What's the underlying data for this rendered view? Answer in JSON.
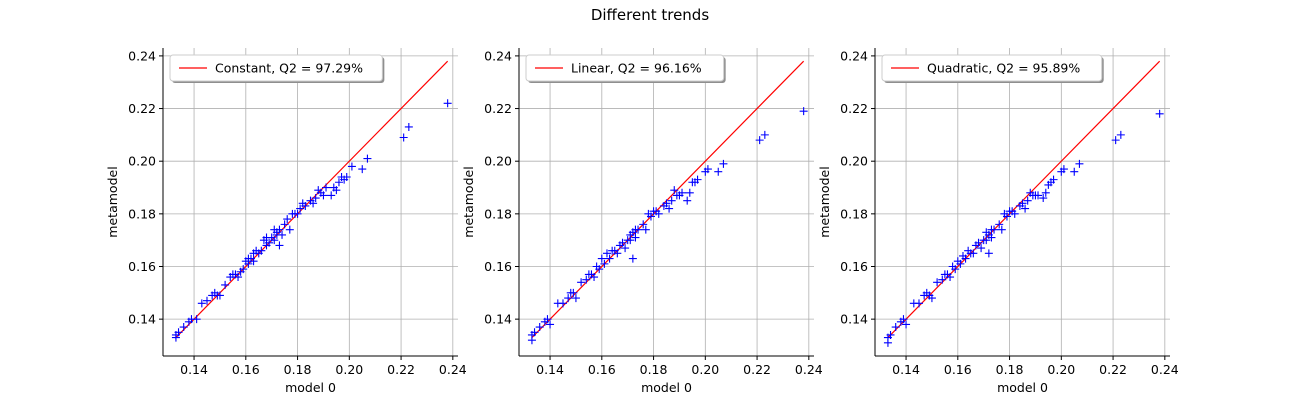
{
  "figure": {
    "suptitle": "Different trends",
    "colors": {
      "points": "#0000ff",
      "line": "#ff0000",
      "grid": "#b0b0b0"
    }
  },
  "chart_data": [
    {
      "type": "scatter",
      "legend": "Constant, Q2 = 97.29%",
      "legend_position": "top-left",
      "xlabel": "model 0",
      "ylabel": "metamodel",
      "xlim": [
        0.128,
        0.242
      ],
      "ylim": [
        0.126,
        0.243
      ],
      "xticks": [
        "0.14",
        "0.16",
        "0.18",
        "0.20",
        "0.22",
        "0.24"
      ],
      "yticks": [
        "0.14",
        "0.16",
        "0.18",
        "0.20",
        "0.22",
        "0.24"
      ],
      "grid": true,
      "line": {
        "x": [
          0.133,
          0.238
        ],
        "y": [
          0.133,
          0.238
        ]
      },
      "points": {
        "x": [
          0.133,
          0.133,
          0.134,
          0.136,
          0.138,
          0.139,
          0.141,
          0.143,
          0.145,
          0.147,
          0.148,
          0.149,
          0.15,
          0.152,
          0.154,
          0.155,
          0.156,
          0.157,
          0.158,
          0.159,
          0.16,
          0.161,
          0.161,
          0.162,
          0.163,
          0.163,
          0.164,
          0.165,
          0.166,
          0.167,
          0.168,
          0.168,
          0.169,
          0.17,
          0.171,
          0.171,
          0.172,
          0.172,
          0.173,
          0.173,
          0.174,
          0.175,
          0.176,
          0.177,
          0.178,
          0.179,
          0.18,
          0.181,
          0.182,
          0.183,
          0.185,
          0.186,
          0.187,
          0.188,
          0.189,
          0.19,
          0.191,
          0.193,
          0.194,
          0.195,
          0.196,
          0.197,
          0.198,
          0.199,
          0.201,
          0.205,
          0.207,
          0.221,
          0.223,
          0.238
        ],
        "y": [
          0.133,
          0.134,
          0.135,
          0.137,
          0.139,
          0.14,
          0.14,
          0.146,
          0.147,
          0.149,
          0.15,
          0.149,
          0.149,
          0.153,
          0.156,
          0.157,
          0.157,
          0.156,
          0.158,
          0.159,
          0.162,
          0.161,
          0.163,
          0.163,
          0.162,
          0.165,
          0.166,
          0.165,
          0.166,
          0.17,
          0.168,
          0.171,
          0.169,
          0.171,
          0.174,
          0.17,
          0.173,
          0.172,
          0.174,
          0.168,
          0.172,
          0.176,
          0.178,
          0.174,
          0.18,
          0.18,
          0.18,
          0.182,
          0.184,
          0.183,
          0.185,
          0.184,
          0.186,
          0.189,
          0.188,
          0.187,
          0.19,
          0.187,
          0.19,
          0.189,
          0.192,
          0.194,
          0.193,
          0.194,
          0.198,
          0.197,
          0.201,
          0.209,
          0.213,
          0.222
        ]
      }
    },
    {
      "type": "scatter",
      "legend": "Linear, Q2 = 96.16%",
      "legend_position": "top-left",
      "xlabel": "model 0",
      "ylabel": "metamodel",
      "xlim": [
        0.128,
        0.242
      ],
      "ylim": [
        0.126,
        0.243
      ],
      "xticks": [
        "0.14",
        "0.16",
        "0.18",
        "0.20",
        "0.22",
        "0.24"
      ],
      "yticks": [
        "0.14",
        "0.16",
        "0.18",
        "0.20",
        "0.22",
        "0.24"
      ],
      "grid": true,
      "line": {
        "x": [
          0.133,
          0.238
        ],
        "y": [
          0.133,
          0.238
        ]
      },
      "points": {
        "x": [
          0.133,
          0.133,
          0.134,
          0.136,
          0.138,
          0.139,
          0.14,
          0.143,
          0.145,
          0.147,
          0.148,
          0.149,
          0.15,
          0.152,
          0.154,
          0.155,
          0.156,
          0.157,
          0.158,
          0.159,
          0.16,
          0.161,
          0.162,
          0.163,
          0.164,
          0.165,
          0.166,
          0.167,
          0.168,
          0.169,
          0.17,
          0.171,
          0.171,
          0.172,
          0.172,
          0.173,
          0.173,
          0.174,
          0.176,
          0.177,
          0.178,
          0.179,
          0.18,
          0.181,
          0.182,
          0.184,
          0.185,
          0.186,
          0.187,
          0.188,
          0.189,
          0.19,
          0.191,
          0.193,
          0.194,
          0.195,
          0.196,
          0.197,
          0.2,
          0.201,
          0.205,
          0.207,
          0.221,
          0.223,
          0.238
        ],
        "y": [
          0.132,
          0.134,
          0.135,
          0.137,
          0.139,
          0.14,
          0.138,
          0.146,
          0.146,
          0.148,
          0.15,
          0.15,
          0.148,
          0.154,
          0.155,
          0.157,
          0.157,
          0.156,
          0.16,
          0.159,
          0.163,
          0.161,
          0.165,
          0.163,
          0.166,
          0.166,
          0.165,
          0.168,
          0.169,
          0.167,
          0.17,
          0.17,
          0.172,
          0.173,
          0.163,
          0.171,
          0.174,
          0.174,
          0.176,
          0.174,
          0.18,
          0.179,
          0.181,
          0.181,
          0.18,
          0.183,
          0.184,
          0.182,
          0.185,
          0.189,
          0.187,
          0.187,
          0.188,
          0.185,
          0.188,
          0.192,
          0.192,
          0.193,
          0.196,
          0.197,
          0.196,
          0.199,
          0.208,
          0.21,
          0.219
        ]
      }
    },
    {
      "type": "scatter",
      "legend": "Quadratic, Q2 = 95.89%",
      "legend_position": "top-left",
      "xlabel": "model 0",
      "ylabel": "metamodel",
      "xlim": [
        0.128,
        0.242
      ],
      "ylim": [
        0.126,
        0.243
      ],
      "xticks": [
        "0.14",
        "0.16",
        "0.18",
        "0.20",
        "0.22",
        "0.24"
      ],
      "yticks": [
        "0.14",
        "0.16",
        "0.18",
        "0.20",
        "0.22",
        "0.24"
      ],
      "grid": true,
      "line": {
        "x": [
          0.133,
          0.238
        ],
        "y": [
          0.133,
          0.238
        ]
      },
      "points": {
        "x": [
          0.133,
          0.133,
          0.134,
          0.136,
          0.138,
          0.139,
          0.14,
          0.143,
          0.145,
          0.147,
          0.148,
          0.149,
          0.15,
          0.152,
          0.154,
          0.155,
          0.156,
          0.157,
          0.158,
          0.159,
          0.16,
          0.161,
          0.162,
          0.163,
          0.164,
          0.165,
          0.166,
          0.167,
          0.168,
          0.169,
          0.17,
          0.171,
          0.171,
          0.172,
          0.172,
          0.173,
          0.173,
          0.174,
          0.176,
          0.177,
          0.178,
          0.179,
          0.18,
          0.181,
          0.182,
          0.184,
          0.185,
          0.186,
          0.187,
          0.188,
          0.189,
          0.19,
          0.191,
          0.193,
          0.194,
          0.195,
          0.196,
          0.197,
          0.2,
          0.201,
          0.205,
          0.207,
          0.221,
          0.223,
          0.238
        ],
        "y": [
          0.131,
          0.133,
          0.134,
          0.137,
          0.139,
          0.14,
          0.138,
          0.146,
          0.146,
          0.149,
          0.15,
          0.149,
          0.148,
          0.154,
          0.155,
          0.157,
          0.157,
          0.156,
          0.16,
          0.159,
          0.162,
          0.161,
          0.164,
          0.163,
          0.166,
          0.165,
          0.165,
          0.168,
          0.169,
          0.167,
          0.17,
          0.17,
          0.173,
          0.172,
          0.165,
          0.171,
          0.174,
          0.174,
          0.176,
          0.174,
          0.18,
          0.179,
          0.181,
          0.181,
          0.18,
          0.183,
          0.184,
          0.182,
          0.185,
          0.188,
          0.187,
          0.187,
          0.187,
          0.186,
          0.188,
          0.191,
          0.192,
          0.193,
          0.196,
          0.197,
          0.196,
          0.199,
          0.208,
          0.21,
          0.218
        ]
      }
    }
  ]
}
